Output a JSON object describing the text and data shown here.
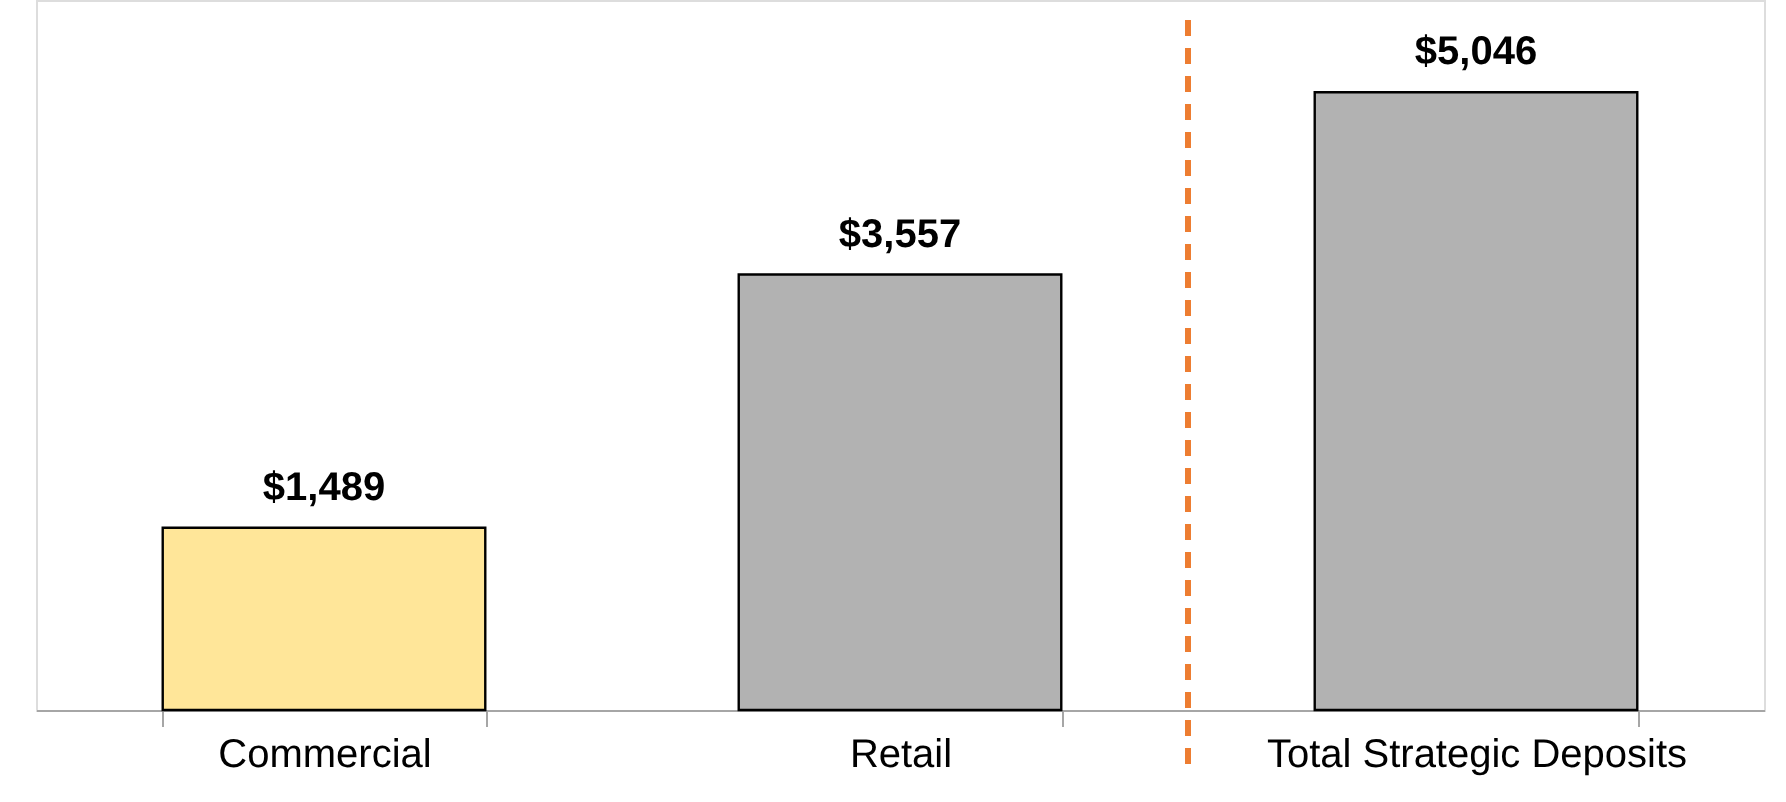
{
  "chart_data": {
    "type": "bar",
    "categories": [
      "Commercial",
      "Retail",
      "Total Strategic Deposits"
    ],
    "values": [
      1489,
      3557,
      5046
    ],
    "colors": [
      "#ffe699",
      "#b2b2b2",
      "#b2b2b2"
    ],
    "value_labels": [
      "$1,489",
      "$3,557",
      "$5,046"
    ],
    "ylim": [
      0,
      5800
    ],
    "tick_labels": "x",
    "grid": false,
    "ref_lines": [
      {
        "axis": "x",
        "value": "Total Strategic Deposits",
        "color": "#ed7d31",
        "line_style": "dashed"
      }
    ]
  }
}
